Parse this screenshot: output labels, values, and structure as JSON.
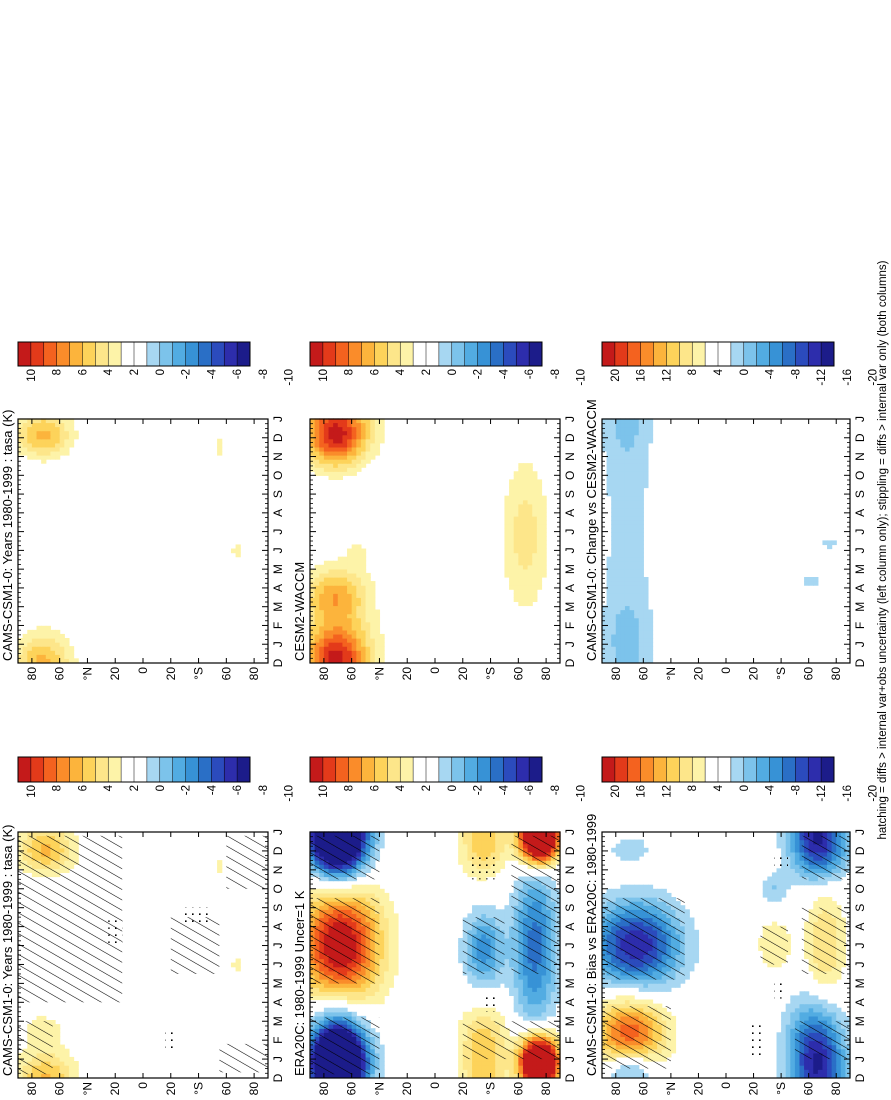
{
  "footer_note": "hatching = diffs > internal var+obs uncertainty (left column only); stippling = diffs > internal var only (both columns)",
  "colorbars": [
    {
      "id": "cb-top-left",
      "labels": [
        "10",
        "8",
        "6",
        "4",
        "2",
        "0",
        "-2",
        "-4",
        "-6",
        "-8",
        "-10"
      ]
    },
    {
      "id": "cb-top-right",
      "labels": [
        "10",
        "8",
        "6",
        "4",
        "2",
        "0",
        "-2",
        "-4",
        "-6",
        "-8",
        "-10"
      ]
    },
    {
      "id": "cb-mid-left",
      "labels": [
        "10",
        "8",
        "6",
        "4",
        "2",
        "0",
        "-2",
        "-4",
        "-6",
        "-8",
        "-10"
      ]
    },
    {
      "id": "cb-mid-right",
      "labels": [
        "10",
        "8",
        "6",
        "4",
        "2",
        "0",
        "-2",
        "-4",
        "-6",
        "-8",
        "-10"
      ]
    },
    {
      "id": "cb-bot-left",
      "labels": [
        "20",
        "16",
        "12",
        "8",
        "4",
        "0",
        "-4",
        "-8",
        "-12",
        "-16",
        "-20"
      ]
    },
    {
      "id": "cb-bot-right",
      "labels": [
        "20",
        "16",
        "12",
        "8",
        "4",
        "0",
        "-4",
        "-8",
        "-12",
        "-16",
        "-20"
      ]
    }
  ],
  "colors": {
    "positive": [
      "#fdf3a8",
      "#fde68a",
      "#fdd35a",
      "#fcb43c",
      "#fa8c2a",
      "#f4621f",
      "#e33a1a",
      "#c41a1a"
    ],
    "negative": [
      "#a7d7f2",
      "#7cc3eb",
      "#52ace2",
      "#3792d6",
      "#2a6fc6",
      "#2b4bbd",
      "#2d2dac",
      "#1c1c8a"
    ],
    "white": "#ffffff"
  },
  "chart_data": [
    {
      "id": "panel-top-left",
      "type": "heatmap",
      "title": "CAMS-CSM1-0: Years 1980-1999 : tasa (K)",
      "x": [
        "D",
        "J",
        "F",
        "M",
        "A",
        "M",
        "J",
        "J",
        "A",
        "S",
        "O",
        "N",
        "D",
        "J"
      ],
      "y_ticks": [
        "80",
        "60",
        "°N",
        "20",
        "0",
        "20",
        "°S",
        "60",
        "80"
      ],
      "value_range": [
        -10,
        10
      ],
      "blobs": [
        {
          "month": 0.4,
          "lat": 70,
          "sm": 1.0,
          "sl": 15,
          "v": 2.5
        },
        {
          "month": 2.6,
          "lat": 72,
          "sm": 0.6,
          "sl": 10,
          "v": 1.5
        },
        {
          "month": 11.8,
          "lat": 70,
          "sm": 0.7,
          "sl": 14,
          "v": 2.0
        },
        {
          "month": 11.2,
          "lat": -55,
          "sm": 0.6,
          "sl": 5,
          "v": 1.2
        },
        {
          "month": 6.0,
          "lat": -68,
          "sm": 0.5,
          "sl": 6,
          "v": 1.2
        }
      ],
      "hatching": [
        {
          "m0": 0.2,
          "m1": 3.0,
          "lat0": 65,
          "lat1": 90
        },
        {
          "m0": 4.0,
          "m1": 12.8,
          "lat0": 15,
          "lat1": 90
        },
        {
          "m0": 0.3,
          "m1": 1.8,
          "lat0": -90,
          "lat1": -55
        },
        {
          "m0": 10.0,
          "m1": 12.8,
          "lat0": -90,
          "lat1": -60
        },
        {
          "m0": 5.5,
          "m1": 8.5,
          "lat0": -55,
          "lat1": -20
        }
      ],
      "stippling": [
        {
          "m0": 7.0,
          "m1": 8.5,
          "lat0": 15,
          "lat1": 25
        },
        {
          "m0": 8.0,
          "m1": 9.0,
          "lat0": -48,
          "lat1": -28
        },
        {
          "m0": 1.5,
          "m1": 2.5,
          "lat0": -24,
          "lat1": -16
        }
      ]
    },
    {
      "id": "panel-top-right",
      "type": "heatmap",
      "title": "CAMS-CSM1-0: Years 1980-1999 : tasa (K)",
      "x": [
        "D",
        "J",
        "F",
        "M",
        "A",
        "M",
        "J",
        "J",
        "A",
        "S",
        "O",
        "N",
        "D",
        "J"
      ],
      "y_ticks": [
        "80",
        "60",
        "°N",
        "20",
        "0",
        "20",
        "°S",
        "60",
        "80"
      ],
      "value_range": [
        -10,
        10
      ],
      "blobs": [
        {
          "month": 0.5,
          "lat": 72,
          "sm": 1.0,
          "sl": 14,
          "v": 2.5
        },
        {
          "month": 11.9,
          "lat": 72,
          "sm": 0.7,
          "sl": 14,
          "v": 2.0
        },
        {
          "month": 11.5,
          "lat": -55,
          "sm": 0.6,
          "sl": 5,
          "v": 1.2
        },
        {
          "month": 6.0,
          "lat": -68,
          "sm": 0.5,
          "sl": 6,
          "v": 1.2
        }
      ],
      "hatching": [],
      "stippling": []
    },
    {
      "id": "panel-mid-left",
      "type": "heatmap",
      "title": "ERA20C: 1980-1999 Uncer=1 K",
      "x": [
        "D",
        "J",
        "F",
        "M",
        "A",
        "M",
        "J",
        "J",
        "A",
        "S",
        "O",
        "N",
        "D",
        "J"
      ],
      "y_ticks": [
        "80",
        "60",
        "°N",
        "20",
        "0",
        "20",
        "°S",
        "60",
        "80"
      ],
      "value_range": [
        -10,
        10
      ],
      "blobs": [
        {
          "month": 1.2,
          "lat": 70,
          "sm": 1.8,
          "sl": 14,
          "v": -9.5
        },
        {
          "month": 12.6,
          "lat": 70,
          "sm": 1.2,
          "sl": 14,
          "v": -8.5
        },
        {
          "month": 7.0,
          "lat": 68,
          "sm": 2.2,
          "sl": 20,
          "v": 9.5
        },
        {
          "month": 2.0,
          "lat": -35,
          "sm": 1.3,
          "sl": 12,
          "v": 3.5
        },
        {
          "month": 11.8,
          "lat": -35,
          "sm": 1.0,
          "sl": 12,
          "v": 2.5
        },
        {
          "month": 0.9,
          "lat": -75,
          "sm": 1.0,
          "sl": 10,
          "v": 9.0
        },
        {
          "month": 12.6,
          "lat": -75,
          "sm": 0.9,
          "sl": 9,
          "v": 8.5
        },
        {
          "month": 7.0,
          "lat": -72,
          "sm": 3.0,
          "sl": 11,
          "v": -5.5
        },
        {
          "month": 6.8,
          "lat": -35,
          "sm": 1.4,
          "sl": 10,
          "v": -4.5
        }
      ],
      "hatching": [
        {
          "m0": 0.2,
          "m1": 3.2,
          "lat0": 40,
          "lat1": 90
        },
        {
          "m0": 5.0,
          "m1": 9.5,
          "lat0": 40,
          "lat1": 90
        },
        {
          "m0": 10.5,
          "m1": 12.8,
          "lat0": 40,
          "lat1": 90
        },
        {
          "m0": 1.0,
          "m1": 3.0,
          "lat0": -90,
          "lat1": -20
        },
        {
          "m0": 5.5,
          "m1": 12.8,
          "lat0": -90,
          "lat1": -55
        },
        {
          "m0": 5.5,
          "m1": 8.5,
          "lat0": -50,
          "lat1": -20
        }
      ],
      "stippling": [
        {
          "m0": 3.5,
          "m1": 4.5,
          "lat0": -45,
          "lat1": -35
        },
        {
          "m0": 10.5,
          "m1": 11.8,
          "lat0": -45,
          "lat1": -25
        }
      ]
    },
    {
      "id": "panel-mid-right",
      "type": "heatmap",
      "title": "CESM2-WACCM",
      "x": [
        "D",
        "J",
        "F",
        "M",
        "A",
        "M",
        "J",
        "J",
        "A",
        "S",
        "O",
        "N",
        "D",
        "J"
      ],
      "y_ticks": [
        "80",
        "60",
        "°N",
        "20",
        "0",
        "20",
        "°S",
        "60",
        "80"
      ],
      "value_range": [
        -10,
        10
      ],
      "blobs": [
        {
          "month": 0.8,
          "lat": 70,
          "sm": 1.3,
          "sl": 18,
          "v": 5.0
        },
        {
          "month": 3.6,
          "lat": 72,
          "sm": 1.0,
          "sl": 16,
          "v": 4.5
        },
        {
          "month": 11.8,
          "lat": 72,
          "sm": 1.0,
          "sl": 14,
          "v": 4.5
        },
        {
          "month": 6.8,
          "lat": -65,
          "sm": 2.8,
          "sl": 12,
          "v": 2.5
        },
        {
          "month": 6.0,
          "lat": 55,
          "sm": 0.8,
          "sl": 10,
          "v": 1.0
        }
      ],
      "hatching": [],
      "stippling": []
    },
    {
      "id": "panel-bot-left",
      "type": "heatmap",
      "title": "CAMS-CSM1-0: Bias vs ERA20C: 1980-1999",
      "x": [
        "D",
        "J",
        "F",
        "M",
        "A",
        "M",
        "J",
        "J",
        "A",
        "S",
        "O",
        "N",
        "D",
        "J"
      ],
      "y_ticks": [
        "80",
        "60",
        "°N",
        "20",
        "0",
        "20",
        "°S",
        "60",
        "80"
      ],
      "value_range": [
        -20,
        20
      ],
      "blobs": [
        {
          "month": 2.2,
          "lat": 70,
          "sm": 1.5,
          "sl": 18,
          "v": 14
        },
        {
          "month": 7.0,
          "lat": 65,
          "sm": 1.6,
          "sl": 22,
          "v": -16
        },
        {
          "month": 12.5,
          "lat": 70,
          "sm": 0.8,
          "sl": 14,
          "v": -10
        },
        {
          "month": 2.0,
          "lat": -65,
          "sm": 1.6,
          "sl": 14,
          "v": -12
        },
        {
          "month": 12.0,
          "lat": -68,
          "sm": 1.2,
          "sl": 14,
          "v": -10
        },
        {
          "month": 7.0,
          "lat": -72,
          "sm": 2.3,
          "sl": 10,
          "v": 6
        },
        {
          "month": 7.0,
          "lat": -35,
          "sm": 1.0,
          "sl": 9,
          "v": 4
        },
        {
          "month": 10.0,
          "lat": -35,
          "sm": 0.6,
          "sl": 7,
          "v": -4
        }
      ],
      "hatching": [
        {
          "m0": 0.5,
          "m1": 3.8,
          "lat0": 40,
          "lat1": 90
        },
        {
          "m0": 5.2,
          "m1": 9.5,
          "lat0": 30,
          "lat1": 90
        },
        {
          "m0": 1.0,
          "m1": 3.0,
          "lat0": -90,
          "lat1": -50
        },
        {
          "m0": 5.5,
          "m1": 9.0,
          "lat0": -90,
          "lat1": -55
        },
        {
          "m0": 10.5,
          "m1": 12.8,
          "lat0": -90,
          "lat1": -55
        },
        {
          "m0": 6.0,
          "m1": 8.0,
          "lat0": -45,
          "lat1": -25
        }
      ],
      "stippling": [
        {
          "m0": 1.0,
          "m1": 3.0,
          "lat0": -28,
          "lat1": -18
        },
        {
          "m0": 4.2,
          "m1": 5.0,
          "lat0": -42,
          "lat1": -35
        },
        {
          "m0": 11.2,
          "m1": 11.9,
          "lat0": -45,
          "lat1": -35
        }
      ]
    },
    {
      "id": "panel-bot-right",
      "type": "heatmap",
      "title": "CAMS-CSM1-0: Change vs CESM2-WACCM",
      "x": [
        "D",
        "J",
        "F",
        "M",
        "A",
        "M",
        "J",
        "J",
        "A",
        "S",
        "O",
        "N",
        "D",
        "J"
      ],
      "y_ticks": [
        "80",
        "60",
        "°N",
        "20",
        "0",
        "20",
        "°S",
        "60",
        "80"
      ],
      "value_range": [
        -20,
        20
      ],
      "blobs": [
        {
          "month": 1.4,
          "lat": 72,
          "sm": 1.4,
          "sl": 14,
          "v": -3.0
        },
        {
          "month": 5.0,
          "lat": 72,
          "sm": 2.5,
          "sl": 14,
          "v": -3.0
        },
        {
          "month": 10.5,
          "lat": 72,
          "sm": 2.0,
          "sl": 14,
          "v": -3.0
        },
        {
          "month": 4.3,
          "lat": -62,
          "sm": 0.3,
          "sl": 5,
          "v": -3.0
        },
        {
          "month": 6.3,
          "lat": -75,
          "sm": 0.3,
          "sl": 4,
          "v": -3.0
        }
      ],
      "hatching": [],
      "stippling": []
    }
  ]
}
